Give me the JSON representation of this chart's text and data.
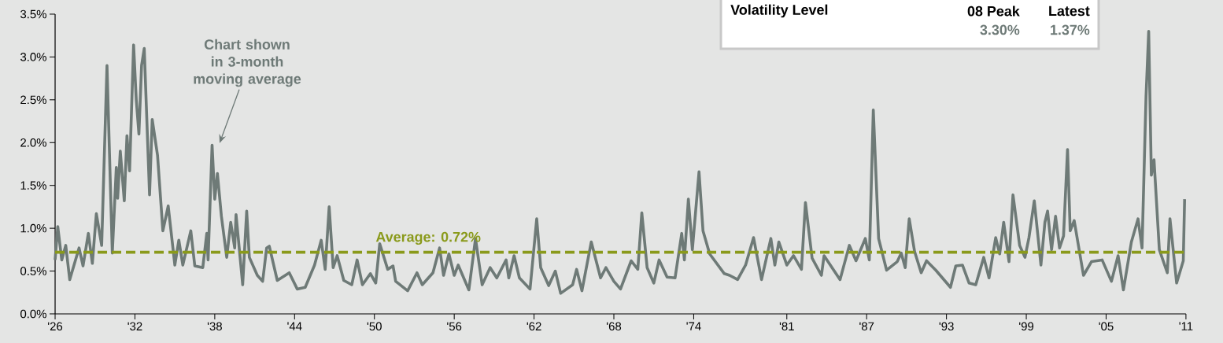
{
  "chart_data": {
    "type": "line",
    "x": [
      1926.0,
      1926.2,
      1926.5,
      1926.8,
      1927.1,
      1927.8,
      1928.1,
      1928.5,
      1928.8,
      1929.1,
      1929.5,
      1929.9,
      1930.3,
      1930.6,
      1930.7,
      1930.9,
      1931.2,
      1931.4,
      1931.6,
      1931.9,
      1932.1,
      1932.3,
      1932.5,
      1932.7,
      1933.1,
      1933.3,
      1933.7,
      1934.1,
      1934.5,
      1935.0,
      1935.3,
      1935.6,
      1936.2,
      1936.5,
      1937.1,
      1937.4,
      1937.5,
      1937.8,
      1938.0,
      1938.2,
      1938.5,
      1938.9,
      1939.2,
      1939.5,
      1939.6,
      1940.1,
      1940.4,
      1940.6,
      1941.2,
      1941.6,
      1941.9,
      1942.1,
      1942.7,
      1943.6,
      1944.2,
      1944.8,
      1945.5,
      1946.0,
      1946.3,
      1946.6,
      1946.9,
      1947.2,
      1947.7,
      1948.3,
      1948.7,
      1949.1,
      1949.7,
      1950.1,
      1950.4,
      1951.0,
      1951.4,
      1951.6,
      1952.5,
      1953.2,
      1953.6,
      1954.4,
      1954.9,
      1955.2,
      1955.6,
      1956.0,
      1956.3,
      1957.1,
      1957.6,
      1958.1,
      1958.7,
      1959.2,
      1959.9,
      1960.1,
      1960.5,
      1960.9,
      1961.7,
      1962.2,
      1962.5,
      1963.1,
      1963.6,
      1964.0,
      1964.9,
      1965.2,
      1965.6,
      1966.3,
      1967.0,
      1967.4,
      1968.0,
      1968.5,
      1969.3,
      1969.8,
      1970.1,
      1970.5,
      1971.0,
      1971.4,
      1972.0,
      1972.6,
      1973.1,
      1973.3,
      1973.6,
      1973.9,
      1974.4,
      1974.7,
      1975.2,
      1976.3,
      1976.7,
      1977.3,
      1977.9,
      1978.5,
      1979.1,
      1979.8,
      1980.1,
      1980.4,
      1981.0,
      1981.5,
      1982.1,
      1982.4,
      1982.9,
      1983.6,
      1983.8,
      1985.0,
      1985.7,
      1986.2,
      1986.9,
      1987.2,
      1987.5,
      1987.9,
      1988.5,
      1989.3,
      1989.6,
      1989.9,
      1990.2,
      1990.6,
      1991.1,
      1991.5,
      1992.2,
      1993.3,
      1993.7,
      1994.2,
      1994.7,
      1995.2,
      1995.8,
      1996.2,
      1996.7,
      1997.0,
      1997.3,
      1997.7,
      1998.0,
      1998.5,
      1998.9,
      1999.2,
      1999.6,
      2000.1,
      2000.4,
      2000.6,
      2000.9,
      2001.2,
      2001.5,
      2001.8,
      2002.1,
      2002.3,
      2002.6,
      2003.3,
      2003.9,
      2004.7,
      2005.4,
      2005.9,
      2006.3,
      2006.9,
      2007.4,
      2007.7,
      2008.0,
      2008.2,
      2008.4,
      2008.6,
      2009.0,
      2009.6,
      2009.8,
      2010.3,
      2010.8,
      2010.9
    ],
    "series": [
      {
        "color": "#6e7a77",
        "values": [
          0.63,
          1.02,
          0.63,
          0.8,
          0.4,
          0.77,
          0.56,
          0.94,
          0.59,
          1.17,
          0.8,
          2.9,
          0.71,
          1.71,
          1.35,
          1.9,
          1.32,
          2.08,
          1.67,
          3.14,
          2.5,
          2.1,
          2.9,
          3.1,
          1.39,
          2.27,
          1.85,
          0.97,
          1.26,
          0.57,
          0.86,
          0.57,
          0.97,
          0.56,
          0.54,
          0.94,
          0.63,
          1.97,
          1.34,
          1.64,
          1.14,
          0.66,
          1.07,
          0.77,
          1.16,
          0.34,
          1.2,
          0.66,
          0.45,
          0.38,
          0.77,
          0.79,
          0.39,
          0.48,
          0.29,
          0.31,
          0.57,
          0.86,
          0.52,
          1.25,
          0.54,
          0.68,
          0.39,
          0.34,
          0.63,
          0.34,
          0.47,
          0.36,
          0.82,
          0.52,
          0.56,
          0.38,
          0.27,
          0.48,
          0.34,
          0.48,
          0.77,
          0.45,
          0.7,
          0.45,
          0.57,
          0.28,
          0.88,
          0.34,
          0.54,
          0.42,
          0.63,
          0.42,
          0.68,
          0.42,
          0.29,
          1.11,
          0.54,
          0.33,
          0.5,
          0.24,
          0.34,
          0.52,
          0.27,
          0.84,
          0.42,
          0.54,
          0.38,
          0.29,
          0.62,
          0.52,
          1.18,
          0.54,
          0.36,
          0.63,
          0.43,
          0.42,
          0.94,
          0.63,
          1.34,
          0.75,
          1.66,
          0.97,
          0.7,
          0.47,
          0.45,
          0.4,
          0.57,
          0.89,
          0.4,
          0.88,
          0.57,
          0.84,
          0.57,
          0.68,
          0.52,
          1.3,
          0.65,
          0.45,
          0.68,
          0.4,
          0.8,
          0.62,
          0.88,
          0.63,
          2.38,
          0.88,
          0.51,
          0.61,
          0.71,
          0.54,
          1.11,
          0.73,
          0.48,
          0.62,
          0.51,
          0.31,
          0.56,
          0.57,
          0.36,
          0.34,
          0.66,
          0.42,
          0.89,
          0.7,
          1.07,
          0.61,
          1.39,
          0.8,
          0.66,
          0.89,
          1.32,
          0.57,
          1.07,
          1.2,
          0.75,
          1.14,
          0.77,
          0.91,
          1.92,
          0.97,
          1.09,
          0.45,
          0.61,
          0.63,
          0.38,
          0.68,
          0.28,
          0.84,
          1.11,
          0.77,
          2.54,
          3.3,
          1.62,
          1.8,
          0.75,
          0.48,
          1.11,
          0.36,
          0.62,
          1.34
        ]
      }
    ],
    "xlim": [
      1926,
      2011
    ],
    "xticks": [
      {
        "value": 1926,
        "label": "'26"
      },
      {
        "value": 1932,
        "label": "'32"
      },
      {
        "value": 1938,
        "label": "'38"
      },
      {
        "value": 1944,
        "label": "'44"
      },
      {
        "value": 1950,
        "label": "'50"
      },
      {
        "value": 1956,
        "label": "'56"
      },
      {
        "value": 1962,
        "label": "'62"
      },
      {
        "value": 1968,
        "label": "'68"
      },
      {
        "value": 1974,
        "label": "'74"
      },
      {
        "value": 1981,
        "label": "'81"
      },
      {
        "value": 1987,
        "label": "'87"
      },
      {
        "value": 1993,
        "label": "'93"
      },
      {
        "value": 1999,
        "label": "'99"
      },
      {
        "value": 2005,
        "label": "'05"
      },
      {
        "value": 2011,
        "label": "'11"
      }
    ],
    "ylim": [
      0,
      3.5
    ],
    "yticks": [
      {
        "value": 0,
        "label": "0.0%"
      },
      {
        "value": 0.5,
        "label": "0.5%"
      },
      {
        "value": 1,
        "label": "1.0%"
      },
      {
        "value": 1.5,
        "label": "1.5%"
      },
      {
        "value": 2,
        "label": "2.0%"
      },
      {
        "value": 2.5,
        "label": "2.5%"
      },
      {
        "value": 3,
        "label": "3.0%"
      },
      {
        "value": 3.5,
        "label": "3.5%"
      }
    ],
    "ref_lines": [
      {
        "axis": "y",
        "value": 0.72,
        "label": "Average: 0.72%",
        "color": "#8a9a1b",
        "line_style": "dashed"
      }
    ],
    "annotations": [
      "Chart shown in 3-month moving average",
      "Volatility Level",
      "08 Peak",
      "Latest",
      "3.30%",
      "1.37%"
    ]
  }
}
